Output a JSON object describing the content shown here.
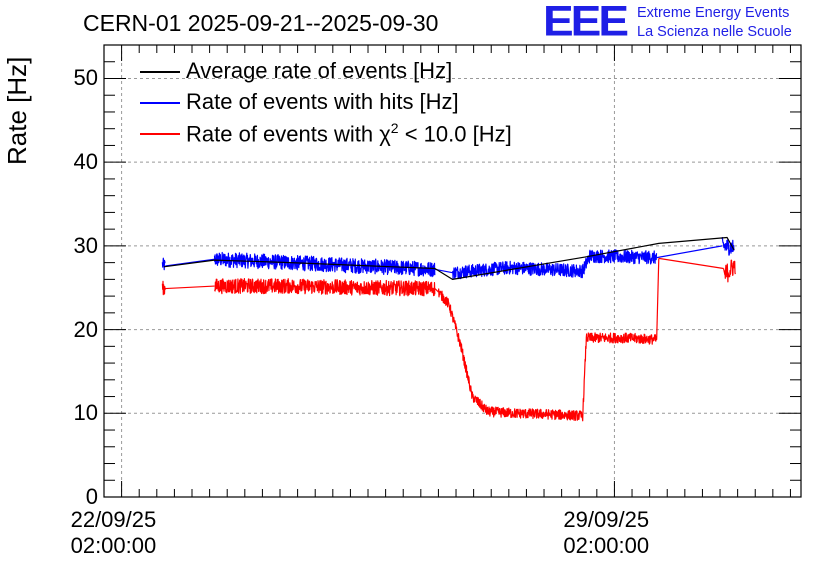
{
  "header": {
    "title": "CERN-01 2025-09-21--2025-09-30",
    "logo_text": "EEE",
    "logo_line1": "Extreme Energy Events",
    "logo_line2": "La Scienza nelle Scuole"
  },
  "colors": {
    "black": "#000000",
    "blue": "#0000ff",
    "red": "#ff0000",
    "grid": "#999999",
    "logo": "#1f1fe6"
  },
  "chart_data": {
    "type": "line",
    "title": "CERN-01 2025-09-21--2025-09-30",
    "xlabel": "",
    "ylabel": "Rate [Hz]",
    "ylim": [
      0,
      54
    ],
    "xlim_days_from_start": [
      -0.25,
      9.65
    ],
    "grid": true,
    "legend_position": "top-left",
    "x_unit": "days since 22/09/25 02:00:00",
    "y_ticks": [
      "0",
      "10",
      "20",
      "30",
      "40",
      "50"
    ],
    "x_ticks": [
      {
        "day": 0,
        "line1": "22/09/25",
        "line2": "02:00:00"
      },
      {
        "day": 7,
        "line1": "29/09/25",
        "line2": "02:00:00"
      }
    ],
    "legend": [
      {
        "label": "Average rate of events [Hz]",
        "color": "black"
      },
      {
        "label": "Rate of events with hits [Hz]",
        "color": "blue"
      },
      {
        "label_prefix": "Rate of events with ",
        "label_symbol": "χ",
        "label_sup": "2",
        "label_suffix": " < 10.0 [Hz]",
        "color": "red"
      }
    ],
    "series": [
      {
        "name": "Rate of events with hits [Hz]",
        "color": "blue",
        "segments": [
          {
            "points": [
              [
                0.58,
                27.8
              ],
              [
                0.62,
                27.6
              ]
            ],
            "noise": 0.8
          },
          {
            "points": [
              [
                1.32,
                28.4
              ],
              [
                2.4,
                28.0
              ],
              [
                3.4,
                27.6
              ],
              [
                4.45,
                27.2
              ]
            ],
            "noise": 0.9
          },
          {
            "points": [
              [
                4.7,
                26.8
              ],
              [
                5.5,
                27.4
              ],
              [
                6.55,
                27.0
              ],
              [
                6.65,
                28.8
              ],
              [
                7.6,
                28.6
              ]
            ],
            "noise": 0.8
          },
          {
            "points": [
              [
                8.53,
                30.0
              ],
              [
                8.7,
                29.8
              ]
            ],
            "noise": 1.0
          }
        ]
      },
      {
        "name": "Average rate of events [Hz]",
        "color": "black",
        "points": [
          [
            0.6,
            27.5
          ],
          [
            1.32,
            28.3
          ],
          [
            2.4,
            28.0
          ],
          [
            4.45,
            27.3
          ],
          [
            4.7,
            26.0
          ],
          [
            6.6,
            28.7
          ],
          [
            7.63,
            30.3
          ],
          [
            8.6,
            31.0
          ],
          [
            8.7,
            29.5
          ]
        ]
      },
      {
        "name": "Rate of events with χ2 < 10.0 [Hz]",
        "color": "red",
        "segments": [
          {
            "points": [
              [
                0.58,
                25.0
              ],
              [
                0.62,
                24.9
              ]
            ],
            "noise": 0.8
          },
          {
            "points": [
              [
                1.32,
                25.2
              ],
              [
                2.4,
                25.2
              ],
              [
                3.4,
                25.0
              ],
              [
                4.45,
                24.9
              ]
            ],
            "noise": 0.9
          },
          {
            "points": [
              [
                4.5,
                24.5
              ],
              [
                4.65,
                23.0
              ],
              [
                4.82,
                18.0
              ],
              [
                4.98,
                12.0
              ],
              [
                5.2,
                10.2
              ],
              [
                5.6,
                10.0
              ],
              [
                6.0,
                9.9
              ],
              [
                6.55,
                9.7
              ],
              [
                6.6,
                19.0
              ],
              [
                7.15,
                19.0
              ],
              [
                7.6,
                18.8
              ]
            ],
            "noise": 0.6
          },
          {
            "points": [
              [
                7.63,
                28.5
              ],
              [
                8.55,
                27.3
              ]
            ],
            "noise": 0.0
          },
          {
            "points": [
              [
                8.57,
                26.5
              ],
              [
                8.72,
                27.8
              ]
            ],
            "noise": 1.2
          }
        ]
      }
    ]
  }
}
